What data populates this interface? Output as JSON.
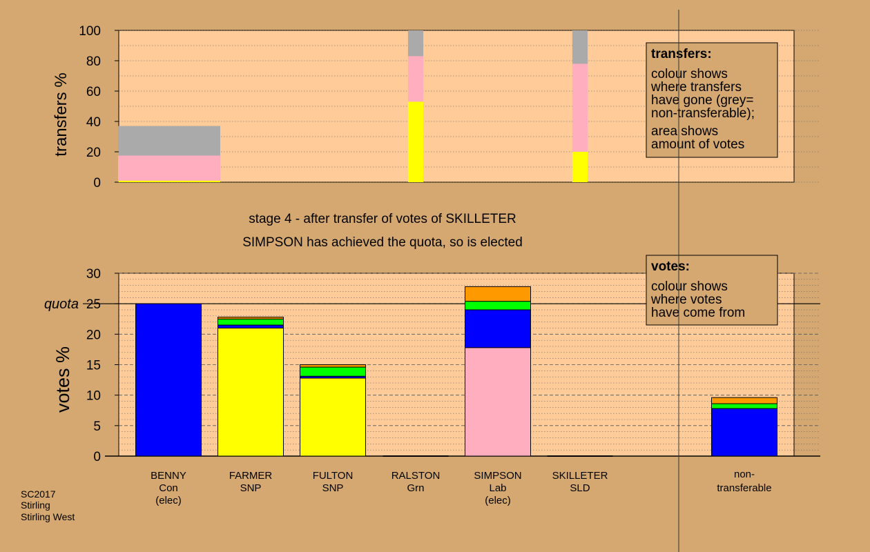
{
  "colors": {
    "page_bg": "#d4a870",
    "plot_bg": "#ffcc99",
    "grid": "#555555",
    "Con": "#0000ff",
    "SNP": "#ffff00",
    "Lab": "#ffaec0",
    "Grn": "#00ff00",
    "SLD": "#ff9900",
    "non_transferable": "#aaaaaa"
  },
  "stage": {
    "line1": "stage 4 - after transfer of votes of SKILLETER",
    "line2": "SIMPSON has achieved the quota, so is elected"
  },
  "footer": {
    "election": "SC2017",
    "council": "Stirling",
    "ward": "Stirling West"
  },
  "chart_data": [
    {
      "type": "bar",
      "subtype": "stacked-transfers",
      "ylabel": "transfers %",
      "ylim": [
        0,
        100
      ],
      "yticks": [
        0,
        20,
        40,
        60,
        80,
        100
      ],
      "grid": true,
      "legend": {
        "placement": "top-right",
        "title": "transfers:",
        "lines_1": [
          "colour shows",
          "where transfers",
          "have gone (grey=",
          "non-transferable);"
        ],
        "lines_2": [
          "area shows",
          "amount of votes"
        ]
      },
      "transfers": [
        {
          "from": "BENNY (elec)",
          "width_relative": 1.0,
          "segments": [
            {
              "party": "SNP",
              "value": 1
            },
            {
              "party": "Lab",
              "value": 16.5
            },
            {
              "party": "non_transferable",
              "value": 19.5
            }
          ]
        },
        {
          "from": "RALSTON",
          "width_relative": 0.15,
          "segments": [
            {
              "party": "SNP",
              "value": 53
            },
            {
              "party": "Lab",
              "value": 30
            },
            {
              "party": "non_transferable",
              "value": 17
            }
          ]
        },
        {
          "from": "SKILLETER",
          "width_relative": 0.15,
          "segments": [
            {
              "party": "SNP",
              "value": 20
            },
            {
              "party": "Lab",
              "value": 58
            },
            {
              "party": "non_transferable",
              "value": 22
            }
          ]
        }
      ]
    },
    {
      "type": "bar",
      "subtype": "stacked-votes",
      "ylabel": "votes %",
      "ylim": [
        0,
        30
      ],
      "yticks": [
        0,
        5,
        10,
        15,
        20,
        25,
        30
      ],
      "quota": 25,
      "quota_label": "quota",
      "grid": true,
      "legend": {
        "placement": "top-right",
        "title": "votes:",
        "lines": [
          "colour shows",
          "where votes",
          "have come from"
        ]
      },
      "candidates": [
        {
          "name": "BENNY",
          "party": "Con",
          "note": "(elec)",
          "segments": [
            {
              "party": "Con",
              "value": 25
            }
          ]
        },
        {
          "name": "FARMER",
          "party": "SNP",
          "note": "",
          "segments": [
            {
              "party": "SNP",
              "value": 21
            },
            {
              "party": "Con",
              "value": 0.5
            },
            {
              "party": "Grn",
              "value": 1.0
            },
            {
              "party": "SLD",
              "value": 0.3
            }
          ]
        },
        {
          "name": "FULTON",
          "party": "SNP",
          "note": "",
          "segments": [
            {
              "party": "SNP",
              "value": 12.8
            },
            {
              "party": "Con",
              "value": 0.3
            },
            {
              "party": "Grn",
              "value": 1.5
            },
            {
              "party": "SLD",
              "value": 0.4
            }
          ]
        },
        {
          "name": "RALSTON",
          "party": "Grn",
          "note": "",
          "segments": []
        },
        {
          "name": "SIMPSON",
          "party": "Lab",
          "note": "(elec)",
          "segments": [
            {
              "party": "Lab",
              "value": 17.8
            },
            {
              "party": "Con",
              "value": 6.2
            },
            {
              "party": "Grn",
              "value": 1.4
            },
            {
              "party": "SLD",
              "value": 2.4
            }
          ]
        },
        {
          "name": "SKILLETER",
          "party": "SLD",
          "note": "",
          "segments": []
        }
      ],
      "non_transferable": {
        "label_line1": "non-",
        "label_line2": "transferable",
        "segments": [
          {
            "party": "Con",
            "value": 7.8
          },
          {
            "party": "Grn",
            "value": 0.8
          },
          {
            "party": "SLD",
            "value": 1.0
          }
        ]
      }
    }
  ]
}
